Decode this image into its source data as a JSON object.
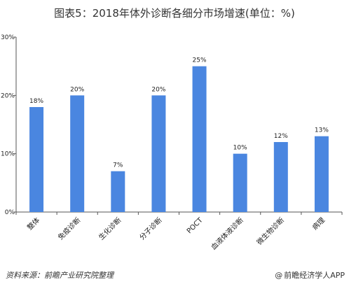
{
  "title": "图表5：2018年体外诊断各细分市场增速(单位：%)",
  "source": "资料来源：前瞻产业研究院整理",
  "credit": "前瞻经济学人APP",
  "credit_symbol": "@",
  "colors": {
    "bar": "#4a86e0",
    "axis": "#555555"
  },
  "chart_data": {
    "type": "bar",
    "title": "图表5：2018年体外诊断各细分市场增速(单位：%)",
    "categories": [
      "整体",
      "免疫诊断",
      "生化诊断",
      "分子诊断",
      "POCT",
      "血液体液诊断",
      "微生物诊断",
      "病理"
    ],
    "values": [
      18,
      20,
      7,
      20,
      25,
      10,
      12,
      13
    ],
    "data_labels": [
      "18%",
      "20%",
      "7%",
      "20%",
      "25%",
      "10%",
      "12%",
      "13%"
    ],
    "ylim": [
      0,
      30
    ],
    "yticks": [
      0,
      10,
      20,
      30
    ],
    "ytick_labels": [
      "0%",
      "10%",
      "20%",
      "30%"
    ],
    "xlabel": "",
    "ylabel": "",
    "grid": false,
    "legend": "none"
  }
}
